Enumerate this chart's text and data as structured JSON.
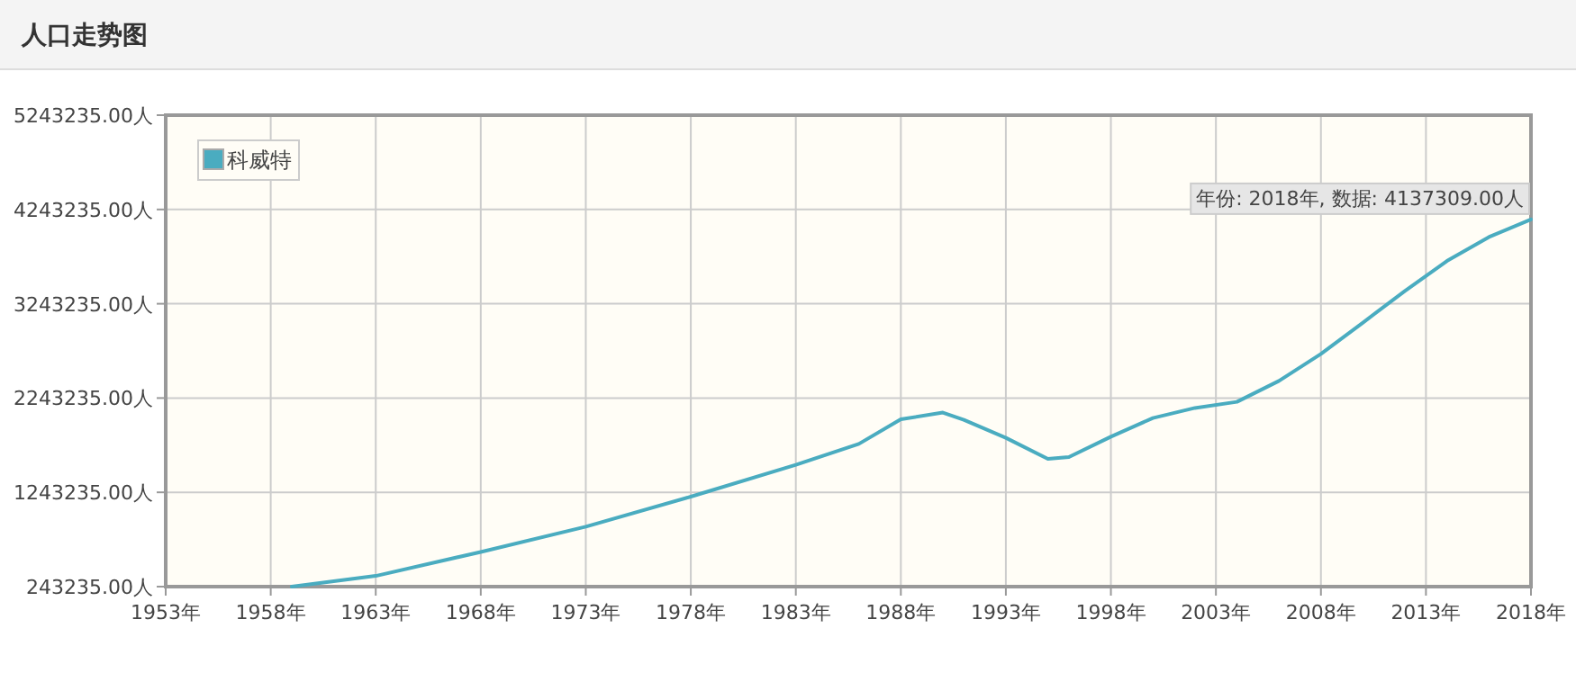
{
  "chart_data": {
    "type": "line",
    "title": "人口走势图",
    "xlim": [
      1953,
      2018
    ],
    "xticks": [
      {
        "value": 1953,
        "label": "1953年"
      },
      {
        "value": 1958,
        "label": "1958年"
      },
      {
        "value": 1963,
        "label": "1963年"
      },
      {
        "value": 1968,
        "label": "1968年"
      },
      {
        "value": 1973,
        "label": "1973年"
      },
      {
        "value": 1978,
        "label": "1978年"
      },
      {
        "value": 1983,
        "label": "1983年"
      },
      {
        "value": 1988,
        "label": "1988年"
      },
      {
        "value": 1993,
        "label": "1993年"
      },
      {
        "value": 1998,
        "label": "1998年"
      },
      {
        "value": 2003,
        "label": "2003年"
      },
      {
        "value": 2008,
        "label": "2008年"
      },
      {
        "value": 2013,
        "label": "2013年"
      },
      {
        "value": 2018,
        "label": "2018年"
      }
    ],
    "ylim": [
      243235,
      5243235
    ],
    "yticks": [
      {
        "value": 243235,
        "label": "243235.00人"
      },
      {
        "value": 1243235,
        "label": "1243235.00人"
      },
      {
        "value": 2243235,
        "label": "2243235.00人"
      },
      {
        "value": 3243235,
        "label": "3243235.00人"
      },
      {
        "value": 4243235,
        "label": "4243235.00人"
      },
      {
        "value": 5243235,
        "label": "5243235.00人"
      }
    ],
    "grid": true,
    "legend": "top left",
    "line_style": "solid",
    "series": [
      {
        "name": "科威特",
        "color": "#4aacc0",
        "x": [
          1959,
          1963,
          1968,
          1973,
          1978,
          1983,
          1986,
          1988,
          1990,
          1991,
          1993,
          1995,
          1996,
          1998,
          2000,
          2002,
          2004,
          2006,
          2008,
          2010,
          2012,
          2014,
          2016,
          2018
        ],
        "values": [
          243235,
          357000,
          611000,
          879000,
          1197000,
          1535000,
          1757000,
          2018000,
          2089000,
          2012000,
          1821000,
          1598000,
          1617000,
          1833000,
          2031000,
          2138000,
          2203000,
          2425000,
          2711000,
          3043000,
          3379000,
          3697000,
          3951000,
          4137309
        ]
      }
    ],
    "annotations": [
      {
        "text": "年份: 2018年, 数据: 4137309.00人",
        "x": 2018,
        "y": 4137309
      }
    ]
  }
}
